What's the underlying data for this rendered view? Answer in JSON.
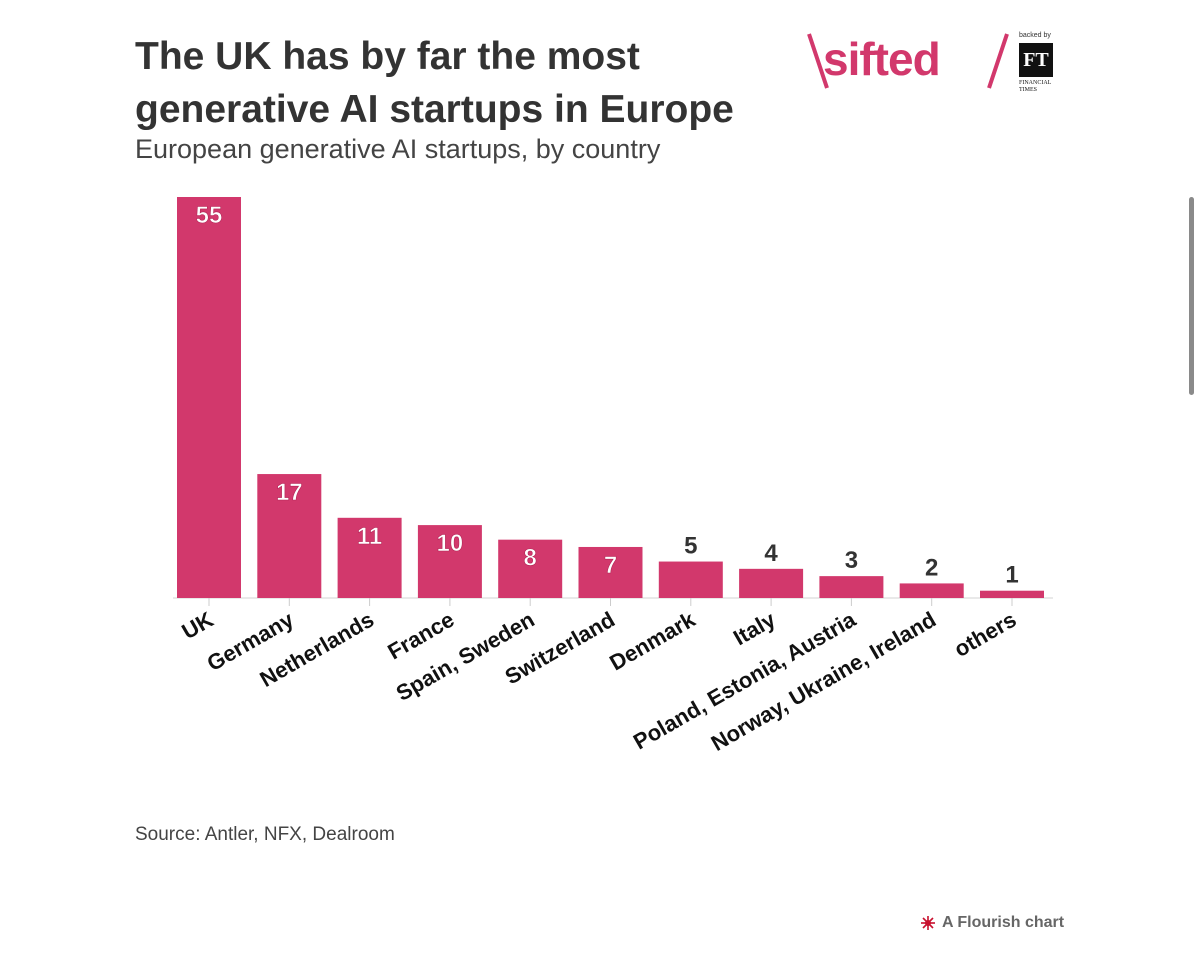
{
  "title": "The UK has by far the most generative AI startups in Europe",
  "subtitle": "European generative AI startups, by country",
  "source": "Source: Antler, NFX, Dealroom",
  "logo": {
    "brand": "sifted",
    "backed_by": "backed by",
    "ft": "FT",
    "ft_name": "FINANCIAL TIMES"
  },
  "flourish_credit": "A Flourish chart",
  "colors": {
    "bar": "#d2386c",
    "accent": "#d2386c",
    "text": "#333333"
  },
  "chart_data": {
    "type": "bar",
    "title": "The UK has by far the most generative AI startups in Europe",
    "subtitle": "European generative AI startups, by country",
    "xlabel": "",
    "ylabel": "",
    "ylim": [
      0,
      55
    ],
    "categories": [
      "UK",
      "Germany",
      "Netherlands",
      "France",
      "Spain, Sweden",
      "Switzerland",
      "Denmark",
      "Italy",
      "Poland, Estonia, Austria",
      "Norway, Ukraine, Ireland",
      "others"
    ],
    "values": [
      55,
      17,
      11,
      10,
      8,
      7,
      5,
      4,
      3,
      2,
      1
    ],
    "grid": false,
    "legend": "none"
  }
}
